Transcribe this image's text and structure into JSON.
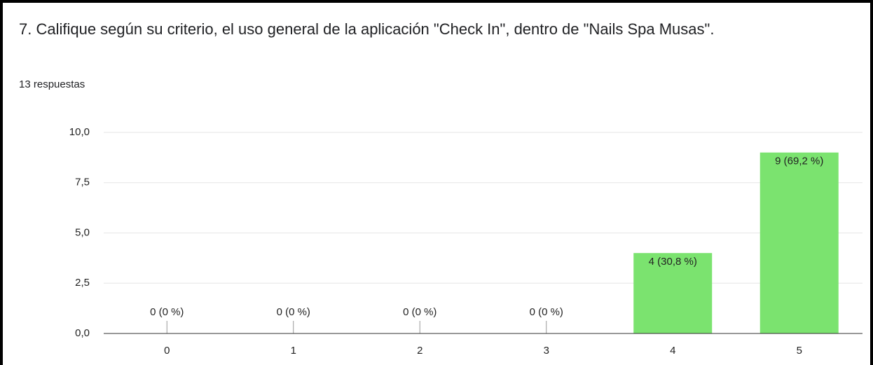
{
  "chart_data": {
    "type": "bar",
    "title": "7. Califique según su criterio, el uso general de la aplicación \"Check In\", dentro de \"Nails Spa Musas\".",
    "subtitle": "13 respuestas",
    "categories": [
      "0",
      "1",
      "2",
      "3",
      "4",
      "5"
    ],
    "values": [
      0,
      0,
      0,
      0,
      4,
      9
    ],
    "value_labels": [
      "0 (0 %)",
      "0 (0 %)",
      "0 (0 %)",
      "0 (0 %)",
      "4 (30,8 %)",
      "9 (69,2 %)"
    ],
    "color": "#7be36f",
    "ylim": [
      0,
      10
    ],
    "yticks": [
      {
        "value": 0,
        "label": "0,0"
      },
      {
        "value": 2.5,
        "label": "2,5"
      },
      {
        "value": 5,
        "label": "5,0"
      },
      {
        "value": 7.5,
        "label": "7,5"
      },
      {
        "value": 10,
        "label": "10,0"
      }
    ],
    "grid": true
  }
}
